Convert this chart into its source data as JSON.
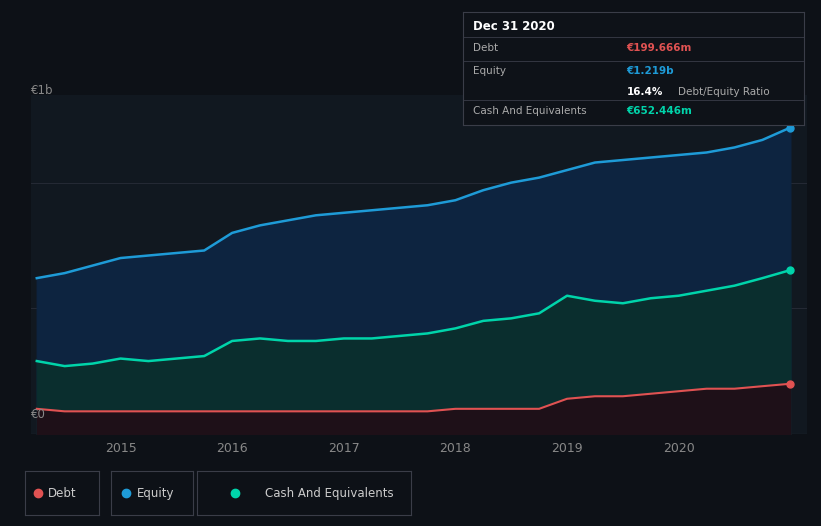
{
  "background_color": "#0d1117",
  "plot_bg_color": "#111820",
  "annotation_box": {
    "title": "Dec 31 2020",
    "debt_label": "Debt",
    "debt_value": "€199.666m",
    "equity_label": "Equity",
    "equity_value": "€1.219b",
    "ratio_text": "16.4% Debt/Equity Ratio",
    "cash_label": "Cash And Equivalents",
    "cash_value": "€652.446m"
  },
  "y_label_top": "€1b",
  "y_label_bottom": "€0",
  "grid_color": "#2a2f3a",
  "equity_color": "#1e9bd7",
  "cash_color": "#00d4aa",
  "debt_color": "#e05252",
  "equity_fill": "#0d2440",
  "cash_fill": "#0a2e2e",
  "debt_fill": "#1e1018",
  "times": [
    2014.25,
    2014.5,
    2014.75,
    2015.0,
    2015.25,
    2015.5,
    2015.75,
    2016.0,
    2016.25,
    2016.5,
    2016.75,
    2017.0,
    2017.25,
    2017.5,
    2017.75,
    2018.0,
    2018.25,
    2018.5,
    2018.75,
    2019.0,
    2019.25,
    2019.5,
    2019.75,
    2020.0,
    2020.25,
    2020.5,
    2020.75,
    2021.0
  ],
  "equity_values": [
    0.62,
    0.64,
    0.67,
    0.7,
    0.71,
    0.72,
    0.73,
    0.8,
    0.83,
    0.85,
    0.87,
    0.88,
    0.89,
    0.9,
    0.91,
    0.93,
    0.97,
    1.0,
    1.02,
    1.05,
    1.08,
    1.09,
    1.1,
    1.11,
    1.12,
    1.14,
    1.17,
    1.219
  ],
  "cash_values": [
    0.29,
    0.27,
    0.28,
    0.3,
    0.29,
    0.3,
    0.31,
    0.37,
    0.38,
    0.37,
    0.37,
    0.38,
    0.38,
    0.39,
    0.4,
    0.42,
    0.45,
    0.46,
    0.48,
    0.55,
    0.53,
    0.52,
    0.54,
    0.55,
    0.57,
    0.59,
    0.62,
    0.652
  ],
  "debt_values": [
    0.1,
    0.09,
    0.09,
    0.09,
    0.09,
    0.09,
    0.09,
    0.09,
    0.09,
    0.09,
    0.09,
    0.09,
    0.09,
    0.09,
    0.09,
    0.1,
    0.1,
    0.1,
    0.1,
    0.14,
    0.15,
    0.15,
    0.16,
    0.17,
    0.18,
    0.18,
    0.19,
    0.1997
  ],
  "ylim": [
    0,
    1.35
  ],
  "xlim": [
    2014.2,
    2021.15
  ],
  "ytick_vals": [
    0.0,
    0.5,
    1.0
  ],
  "xtick_vals": [
    2015,
    2016,
    2017,
    2018,
    2019,
    2020
  ],
  "xtick_labels": [
    "2015",
    "2016",
    "2017",
    "2018",
    "2019",
    "2020"
  ]
}
